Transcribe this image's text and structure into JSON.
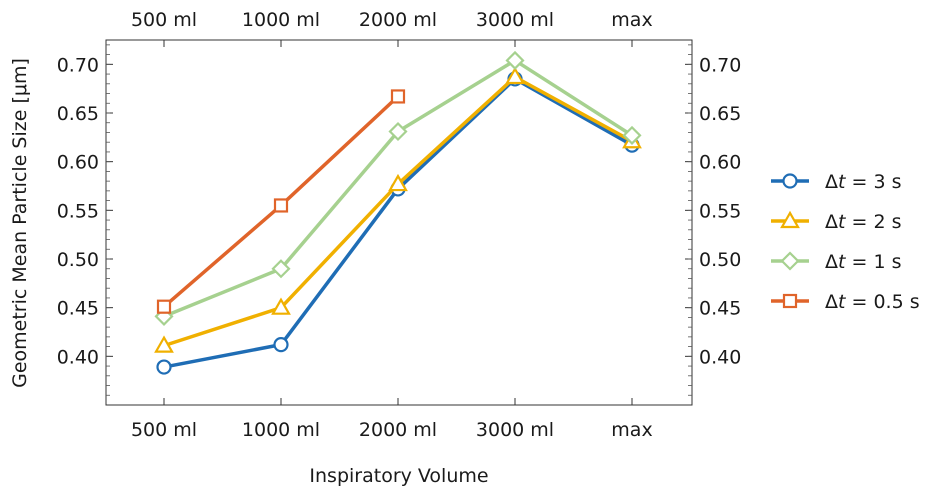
{
  "chart_data": {
    "type": "line",
    "categories": [
      "500 ml",
      "1000 ml",
      "2000 ml",
      "3000 ml",
      "max"
    ],
    "xlabel": "Inspiratory Volume",
    "ylabel": "Geometric Mean Particle Size [μm]",
    "ylim": [
      0.35,
      0.725
    ],
    "yticks": [
      "0.40",
      "0.45",
      "0.50",
      "0.55",
      "0.60",
      "0.65",
      "0.70"
    ],
    "grid": false,
    "legend_position": "right",
    "series": [
      {
        "name": "Δt = 3 s",
        "dt": "Δ",
        "t": "t",
        "rest": " = 3 s",
        "color": "#1f6db5",
        "marker": "circle",
        "values": [
          0.389,
          0.412,
          0.572,
          0.685,
          0.617
        ]
      },
      {
        "name": "Δt = 2 s",
        "dt": "Δ",
        "t": "t",
        "rest": " = 2 s",
        "color": "#f0b000",
        "marker": "triangle",
        "values": [
          0.411,
          0.45,
          0.577,
          0.687,
          0.621
        ]
      },
      {
        "name": "Δt = 1 s",
        "dt": "Δ",
        "t": "t",
        "rest": " = 1 s",
        "color": "#a6d18f",
        "marker": "diamond",
        "values": [
          0.441,
          0.49,
          0.631,
          0.704,
          0.627
        ]
      },
      {
        "name": "Δt = 0.5 s",
        "dt": "Δ",
        "t": "t",
        "rest": " = 0.5 s",
        "color": "#e0642a",
        "marker": "square",
        "values": [
          0.451,
          0.555,
          0.667,
          null,
          null
        ]
      }
    ]
  }
}
